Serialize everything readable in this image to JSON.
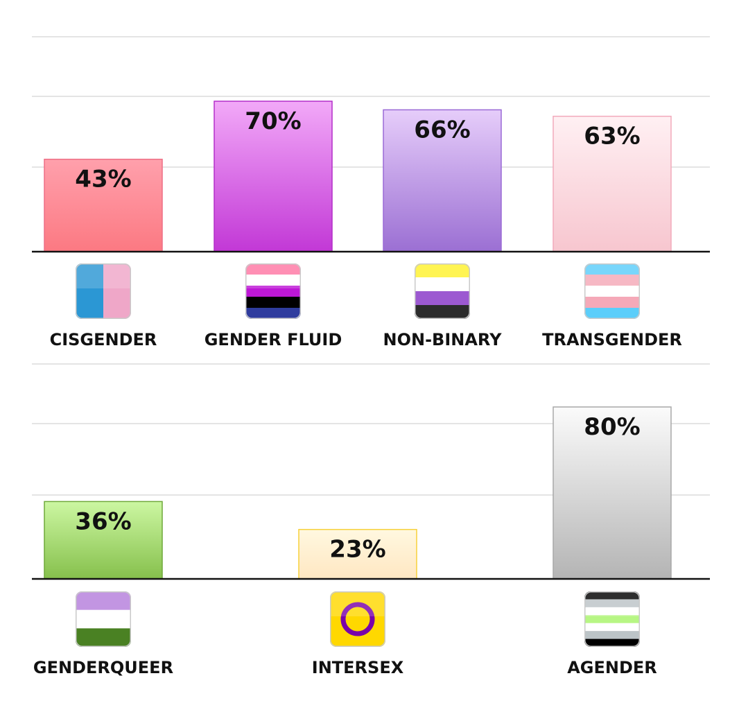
{
  "chart_data": [
    {
      "type": "bar",
      "categories": [
        "CISGENDER",
        "GENDER FLUID",
        "NON-BINARY",
        "TRANSGENDER"
      ],
      "values": [
        43,
        70,
        66,
        63
      ],
      "data_labels": [
        "43%",
        "70%",
        "66%",
        "63%"
      ],
      "ylim": [
        0,
        100
      ],
      "grid": true,
      "colors": [
        {
          "top": "#ffa0ac",
          "bottom": "#fc7982",
          "border": "#ee6f86"
        },
        {
          "top": "#f2a9f8",
          "bottom": "#c238d6",
          "border": "#b32fc9"
        },
        {
          "top": "#e6cdfa",
          "bottom": "#9b6fd3",
          "border": "#9a6ad6"
        },
        {
          "top": "#fff0f3",
          "bottom": "#f7c6cf",
          "border": "#f2aabb"
        }
      ],
      "icons": [
        "cisgender-flag-icon",
        "genderfluid-flag-icon",
        "nonbinary-flag-icon",
        "transgender-flag-icon"
      ]
    },
    {
      "type": "bar",
      "categories": [
        "GENDERQUEER",
        "INTERSEX",
        "AGENDER"
      ],
      "values": [
        36,
        23,
        80
      ],
      "data_labels": [
        "36%",
        "23%",
        "80%"
      ],
      "ylim": [
        0,
        100
      ],
      "grid": true,
      "colors": [
        {
          "top": "#ccf7a2",
          "bottom": "#86c04c",
          "border": "#6fa93a"
        },
        {
          "top": "#fff8e0",
          "bottom": "#ffe7c2",
          "border": "#f7d13a"
        },
        {
          "top": "#fbfbfb",
          "bottom": "#b4b4b4",
          "border": "#a8a8a8"
        }
      ],
      "icons": [
        "genderqueer-flag-icon",
        "intersex-flag-icon",
        "agender-flag-icon"
      ]
    }
  ]
}
